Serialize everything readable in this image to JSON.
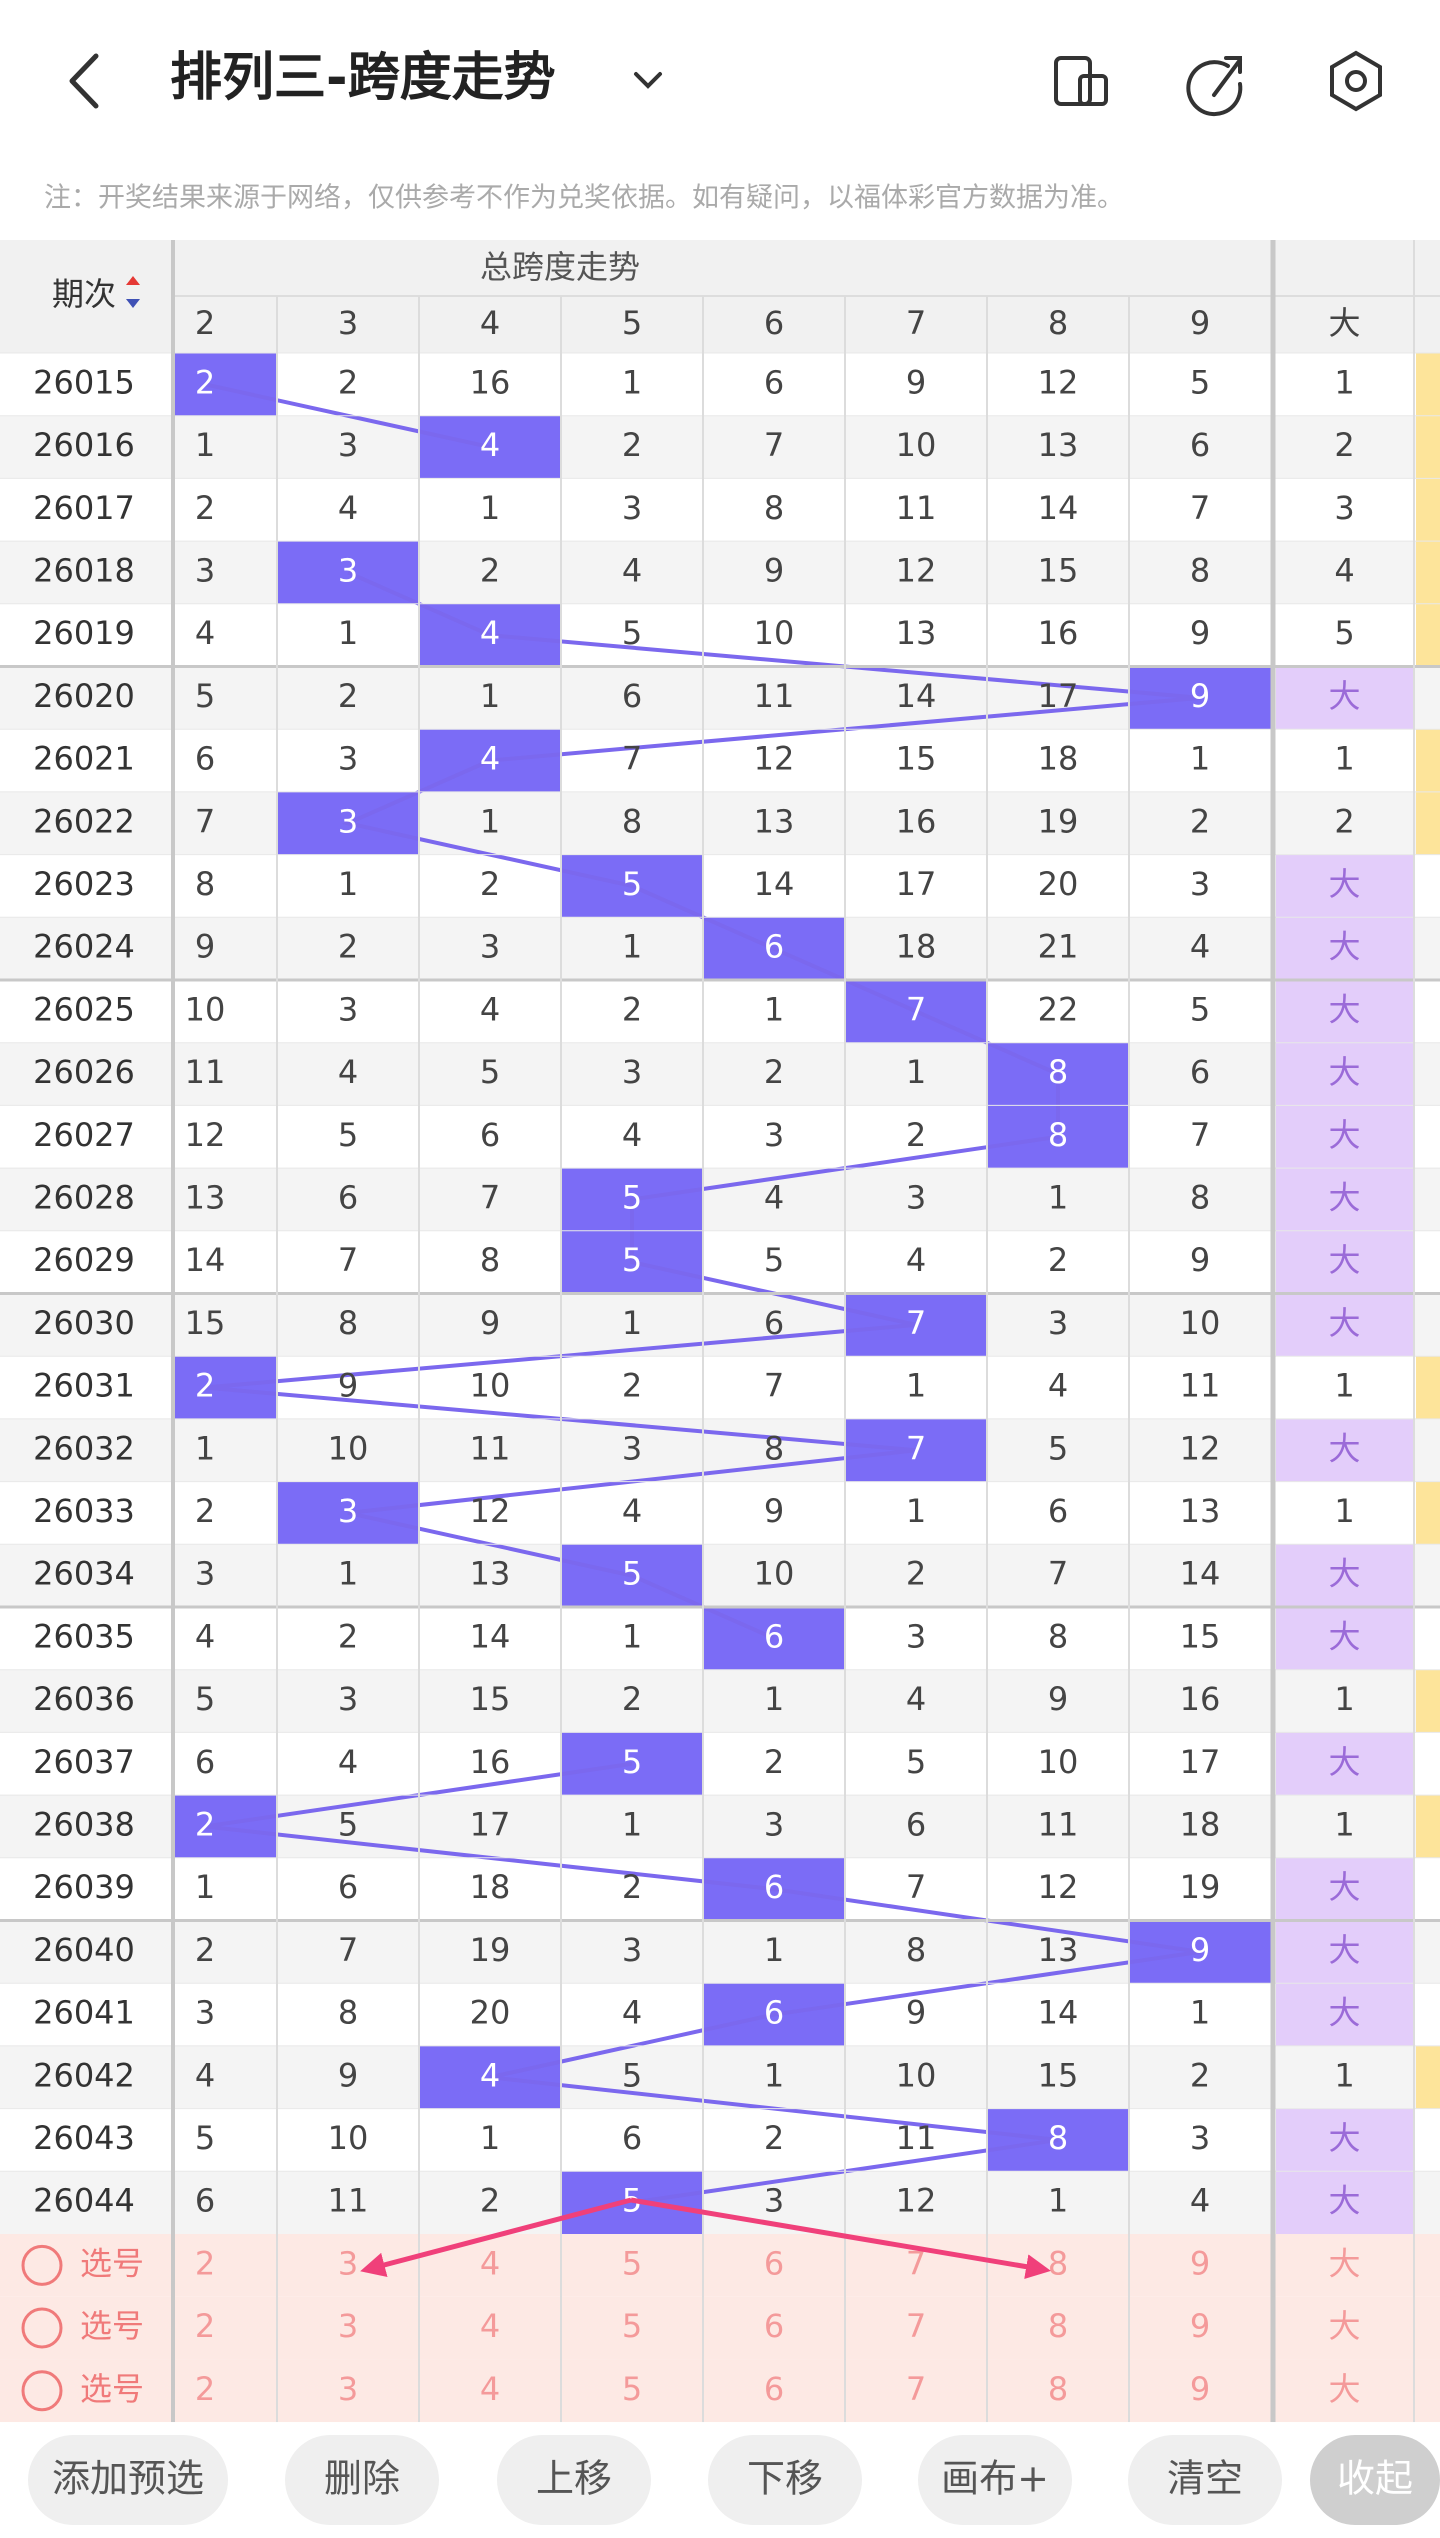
{
  "header": {
    "title": "排列三-跨度走势",
    "notice": "注：开奖结果来源于网络，仅供参考不作为兑奖依据。如有疑问，以福体彩官方数据为准。"
  },
  "table": {
    "period_header": "期次",
    "group_header": "总跨度走势",
    "columns": [
      2,
      3,
      4,
      5,
      6,
      7,
      8,
      9
    ],
    "big_header": "大",
    "rows": [
      {
        "period": "26015",
        "values": [
          2,
          2,
          16,
          1,
          6,
          9,
          12,
          5
        ],
        "span": 2,
        "big": 1
      },
      {
        "period": "26016",
        "values": [
          1,
          3,
          4,
          2,
          7,
          10,
          13,
          6
        ],
        "span": 4,
        "big": 2
      },
      {
        "period": "26017",
        "values": [
          2,
          4,
          1,
          3,
          8,
          11,
          14,
          7
        ],
        "span": null,
        "big": 3
      },
      {
        "period": "26018",
        "values": [
          3,
          3,
          2,
          4,
          9,
          12,
          15,
          8
        ],
        "span": 3,
        "big": 4
      },
      {
        "period": "26019",
        "values": [
          4,
          1,
          4,
          5,
          10,
          13,
          16,
          9
        ],
        "span": 4,
        "big": 5
      },
      {
        "period": "26020",
        "values": [
          5,
          2,
          1,
          6,
          11,
          14,
          17,
          9
        ],
        "span": 9,
        "big": "大"
      },
      {
        "period": "26021",
        "values": [
          6,
          3,
          4,
          7,
          12,
          15,
          18,
          1
        ],
        "span": 4,
        "big": 1
      },
      {
        "period": "26022",
        "values": [
          7,
          3,
          1,
          8,
          13,
          16,
          19,
          2
        ],
        "span": 3,
        "big": 2
      },
      {
        "period": "26023",
        "values": [
          8,
          1,
          2,
          5,
          14,
          17,
          20,
          3
        ],
        "span": 5,
        "big": "大"
      },
      {
        "period": "26024",
        "values": [
          9,
          2,
          3,
          1,
          6,
          18,
          21,
          4
        ],
        "span": 6,
        "big": "大"
      },
      {
        "period": "26025",
        "values": [
          10,
          3,
          4,
          2,
          1,
          7,
          22,
          5
        ],
        "span": 7,
        "big": "大"
      },
      {
        "period": "26026",
        "values": [
          11,
          4,
          5,
          3,
          2,
          1,
          8,
          6
        ],
        "span": 8,
        "big": "大"
      },
      {
        "period": "26027",
        "values": [
          12,
          5,
          6,
          4,
          3,
          2,
          8,
          7
        ],
        "span": 8,
        "big": "大"
      },
      {
        "period": "26028",
        "values": [
          13,
          6,
          7,
          5,
          4,
          3,
          1,
          8
        ],
        "span": 5,
        "big": "大"
      },
      {
        "period": "26029",
        "values": [
          14,
          7,
          8,
          5,
          5,
          4,
          2,
          9
        ],
        "span": 5,
        "big": "大"
      },
      {
        "period": "26030",
        "values": [
          15,
          8,
          9,
          1,
          6,
          7,
          3,
          10
        ],
        "span": 7,
        "big": "大"
      },
      {
        "period": "26031",
        "values": [
          2,
          9,
          10,
          2,
          7,
          1,
          4,
          11
        ],
        "span": 2,
        "big": 1
      },
      {
        "period": "26032",
        "values": [
          1,
          10,
          11,
          3,
          8,
          7,
          5,
          12
        ],
        "span": 7,
        "big": "大"
      },
      {
        "period": "26033",
        "values": [
          2,
          3,
          12,
          4,
          9,
          1,
          6,
          13
        ],
        "span": 3,
        "big": 1
      },
      {
        "period": "26034",
        "values": [
          3,
          1,
          13,
          5,
          10,
          2,
          7,
          14
        ],
        "span": 5,
        "big": "大"
      },
      {
        "period": "26035",
        "values": [
          4,
          2,
          14,
          1,
          6,
          3,
          8,
          15
        ],
        "span": 6,
        "big": "大"
      },
      {
        "period": "26036",
        "values": [
          5,
          3,
          15,
          2,
          1,
          4,
          9,
          16
        ],
        "span": null,
        "big": 1
      },
      {
        "period": "26037",
        "values": [
          6,
          4,
          16,
          5,
          2,
          5,
          10,
          17
        ],
        "span": 5,
        "big": "大"
      },
      {
        "period": "26038",
        "values": [
          2,
          5,
          17,
          1,
          3,
          6,
          11,
          18
        ],
        "span": 2,
        "big": 1
      },
      {
        "period": "26039",
        "values": [
          1,
          6,
          18,
          2,
          6,
          7,
          12,
          19
        ],
        "span": 6,
        "big": "大"
      },
      {
        "period": "26040",
        "values": [
          2,
          7,
          19,
          3,
          1,
          8,
          13,
          9
        ],
        "span": 9,
        "big": "大"
      },
      {
        "period": "26041",
        "values": [
          3,
          8,
          20,
          4,
          6,
          9,
          14,
          1
        ],
        "span": 6,
        "big": "大"
      },
      {
        "period": "26042",
        "values": [
          4,
          9,
          4,
          5,
          1,
          10,
          15,
          2
        ],
        "span": 4,
        "big": 1
      },
      {
        "period": "26043",
        "values": [
          5,
          10,
          1,
          6,
          2,
          11,
          8,
          3
        ],
        "span": 8,
        "big": "大"
      },
      {
        "period": "26044",
        "values": [
          6,
          11,
          2,
          5,
          3,
          12,
          1,
          4
        ],
        "span": 5,
        "big": "大"
      }
    ],
    "pick_rows": [
      {
        "label": "选号",
        "values": [
          2,
          3,
          4,
          5,
          6,
          7,
          8,
          9
        ],
        "big": "大"
      },
      {
        "label": "选号",
        "values": [
          2,
          3,
          4,
          5,
          6,
          7,
          8,
          9
        ],
        "big": "大"
      },
      {
        "label": "选号",
        "values": [
          2,
          3,
          4,
          5,
          6,
          7,
          8,
          9
        ],
        "big": "大"
      }
    ]
  },
  "buttons": [
    "添加预选",
    "删除",
    "上移",
    "下移",
    "画布+",
    "清空",
    "收起"
  ]
}
